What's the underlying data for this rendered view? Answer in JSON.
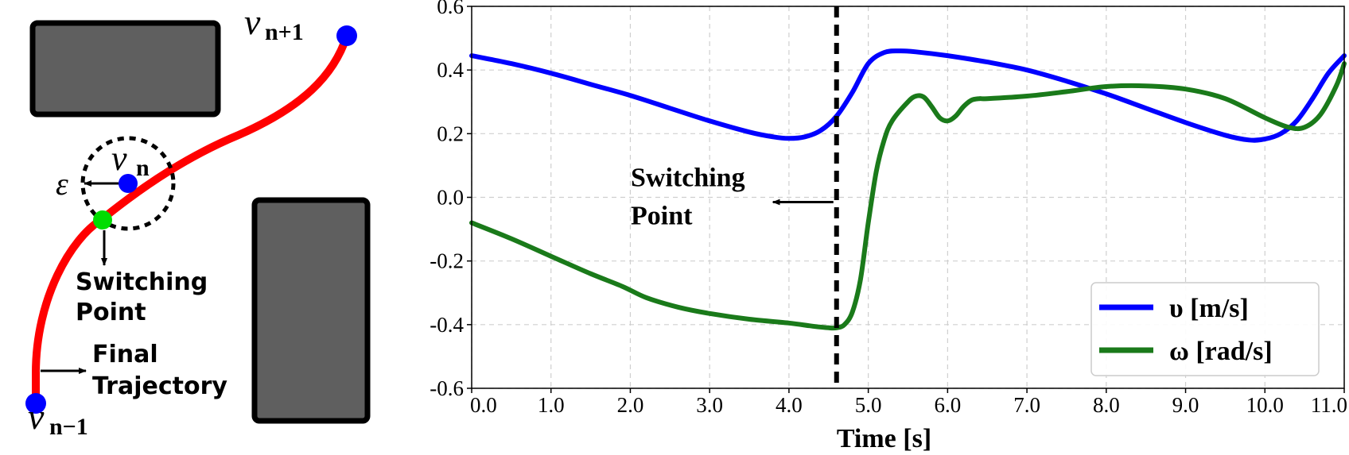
{
  "diagram": {
    "labels": {
      "v_next": "ν",
      "v_next_sub": "n+1",
      "v_cur": "ν",
      "v_cur_sub": "n",
      "v_prev": "ν",
      "v_prev_sub": "n−1",
      "epsilon": "ε",
      "switching_line1": "Switching",
      "switching_line2": "Point",
      "final_line1": "Final",
      "final_line2": "Trajectory"
    },
    "colors": {
      "trajectory": "#ff0000",
      "waypoint": "#0000ff",
      "switch_point": "#00dd00",
      "obstacle_fill": "#5f5f5f",
      "obstacle_stroke": "#000000"
    }
  },
  "chart_data": {
    "type": "line",
    "xlabel": "Time [s]",
    "ylabel": "",
    "xlim": [
      0.0,
      11.0
    ],
    "ylim": [
      -0.6,
      0.6
    ],
    "xticks": [
      "0.0",
      "1.0",
      "2.0",
      "3.0",
      "4.0",
      "5.0",
      "6.0",
      "7.0",
      "8.0",
      "9.0",
      "10.0",
      "11.0"
    ],
    "yticks": [
      "0.6",
      "0.4",
      "0.2",
      "0.0",
      "-0.2",
      "-0.4",
      "-0.6"
    ],
    "grid": true,
    "legend_position": "bottom-right",
    "switching_time": 4.6,
    "annotation_line1": "Switching",
    "annotation_line2": "Point",
    "series": [
      {
        "name": "υ [m/s]",
        "color": "#0000ff",
        "x": [
          0.0,
          0.5,
          1.0,
          1.5,
          2.0,
          2.5,
          3.0,
          3.5,
          3.8,
          4.0,
          4.2,
          4.4,
          4.6,
          4.8,
          5.0,
          5.2,
          5.4,
          5.6,
          6.0,
          6.5,
          7.0,
          7.5,
          8.0,
          8.5,
          9.0,
          9.5,
          9.8,
          10.0,
          10.2,
          10.4,
          10.6,
          10.8,
          11.0
        ],
        "y": [
          0.445,
          0.42,
          0.39,
          0.355,
          0.32,
          0.28,
          0.24,
          0.205,
          0.19,
          0.185,
          0.19,
          0.21,
          0.255,
          0.33,
          0.42,
          0.455,
          0.46,
          0.457,
          0.445,
          0.425,
          0.4,
          0.365,
          0.325,
          0.28,
          0.235,
          0.195,
          0.18,
          0.183,
          0.2,
          0.24,
          0.31,
          0.39,
          0.445
        ]
      },
      {
        "name": "ω [rad/s]",
        "color": "#1a7a1a",
        "x": [
          0.0,
          0.5,
          1.0,
          1.5,
          1.9,
          2.2,
          2.6,
          3.0,
          3.5,
          4.0,
          4.3,
          4.5,
          4.6,
          4.7,
          4.8,
          4.9,
          5.0,
          5.1,
          5.2,
          5.3,
          5.5,
          5.6,
          5.7,
          5.8,
          5.9,
          6.0,
          6.1,
          6.2,
          6.3,
          6.4,
          6.5,
          7.0,
          7.5,
          8.0,
          8.5,
          9.0,
          9.5,
          10.0,
          10.3,
          10.5,
          10.7,
          10.9,
          11.0
        ],
        "y": [
          -0.08,
          -0.13,
          -0.185,
          -0.24,
          -0.28,
          -0.315,
          -0.345,
          -0.365,
          -0.383,
          -0.395,
          -0.405,
          -0.41,
          -0.41,
          -0.4,
          -0.36,
          -0.26,
          -0.08,
          0.08,
          0.18,
          0.24,
          0.3,
          0.318,
          0.315,
          0.285,
          0.25,
          0.24,
          0.255,
          0.285,
          0.305,
          0.31,
          0.31,
          0.318,
          0.332,
          0.348,
          0.35,
          0.34,
          0.31,
          0.25,
          0.22,
          0.22,
          0.26,
          0.35,
          0.42
        ]
      }
    ]
  }
}
